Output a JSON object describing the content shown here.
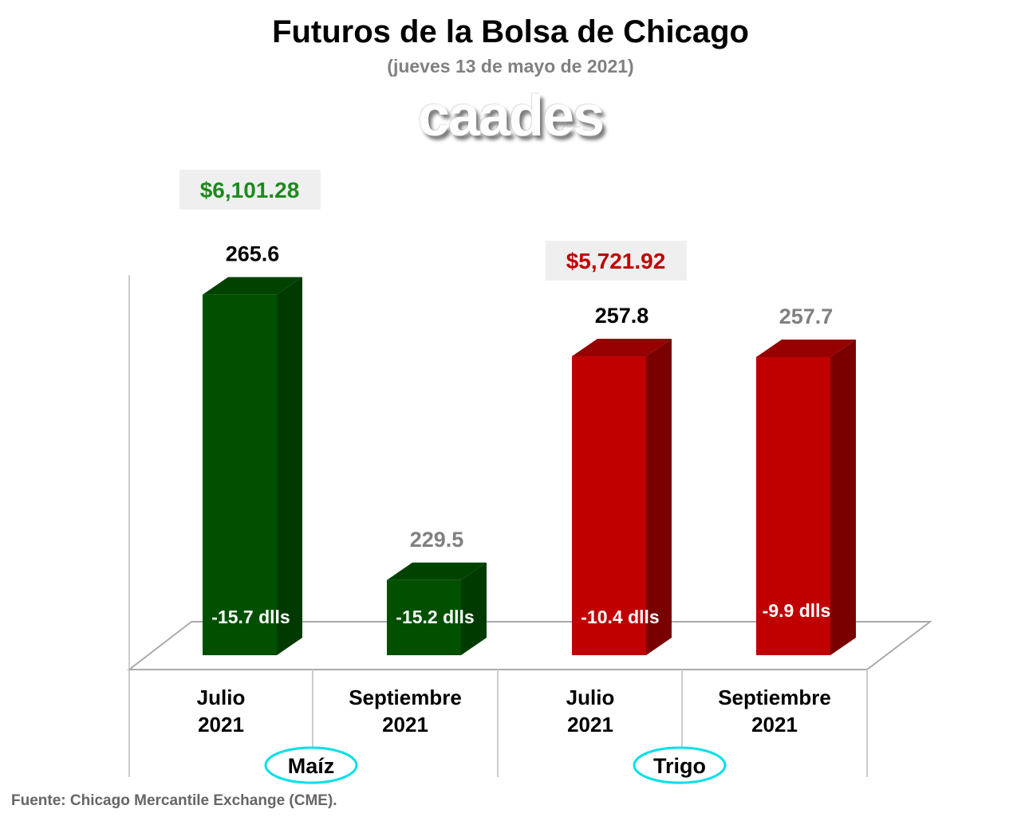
{
  "chart_data": {
    "type": "bar",
    "title": "Futuros de la Bolsa de Chicago",
    "subtitle": "(jueves 13 de mayo de 2021)",
    "three_d": true,
    "grid": false,
    "ylim": [
      220,
      270
    ],
    "categories": [
      [
        "Julio",
        "2021"
      ],
      [
        "Septiembre",
        "2021"
      ],
      [
        "Julio",
        "2021"
      ],
      [
        "Septiembre",
        "2021"
      ]
    ],
    "values": [
      265.6,
      229.5,
      257.8,
      257.7
    ],
    "value_labels": [
      "265.6",
      "229.5",
      "257.8",
      "257.7"
    ],
    "value_label_colors": [
      "#000000",
      "#808080",
      "#000000",
      "#808080"
    ],
    "change_labels": [
      "-15.7 dlls",
      "-15.2 dlls",
      "-10.4 dlls",
      "-9.9 dlls"
    ],
    "bar_colors": [
      "#005000",
      "#005000",
      "#c00000",
      "#c00000"
    ],
    "bar_side_colors": [
      "#003a00",
      "#003a00",
      "#7a0000",
      "#7a0000"
    ],
    "bar_top_colors": [
      "#004200",
      "#004200",
      "#960000",
      "#960000"
    ],
    "groups": [
      {
        "label": "Maíz",
        "price": "$6,101.28",
        "price_color": "#1e8a1e"
      },
      {
        "label": "Trigo",
        "price": "$5,721.92",
        "price_color": "#c00000"
      }
    ],
    "group_ellipse_color": "#00e0e8"
  },
  "logo": "caades",
  "source": "Fuente: Chicago Mercantile Exchange (CME)."
}
